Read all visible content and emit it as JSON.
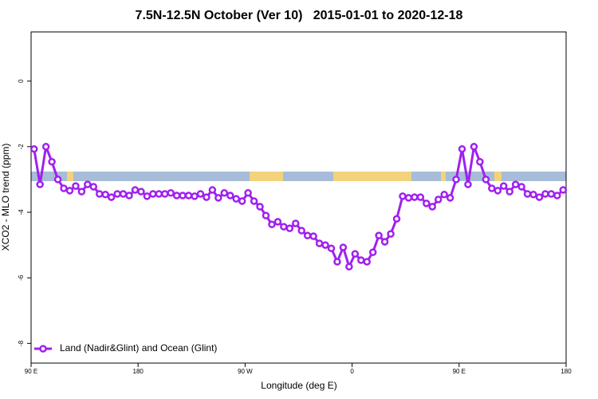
{
  "chart_data": {
    "type": "line",
    "title": "7.5N-12.5N October (Ver 10)   2015-01-01 to 2020-12-18",
    "x_label": "Longitude (deg E)",
    "y_label": "XCO2 - MLO trend (ppm)",
    "xlim": [
      90,
      540
    ],
    "xticks": [
      {
        "value": 90,
        "label": "90 E"
      },
      180,
      {
        "value": 270,
        "label": "90 W"
      },
      {
        "value": 360,
        "label": "0"
      },
      {
        "value": 450,
        "label": "90 E"
      },
      {
        "value": 540,
        "label": "180"
      }
    ],
    "ylim": [
      -8.6,
      1.5
    ],
    "yticks": [
      0,
      -2,
      -4,
      -6,
      -8
    ],
    "grid": false,
    "legend": "bottom-left",
    "x": [
      92.5,
      97.5,
      102.5,
      107.5,
      112.5,
      117.5,
      122.5,
      127.5,
      132.5,
      137.5,
      142.5,
      147.5,
      152.5,
      157.5,
      162.5,
      167.5,
      172.5,
      177.5,
      182.5,
      187.5,
      192.5,
      197.5,
      202.5,
      207.5,
      212.5,
      217.5,
      222.5,
      227.5,
      232.5,
      237.5,
      242.5,
      247.5,
      252.5,
      257.5,
      262.5,
      267.5,
      272.5,
      277.5,
      282.5,
      287.5,
      292.5,
      297.5,
      302.5,
      307.5,
      312.5,
      317.5,
      322.5,
      327.5,
      332.5,
      337.5,
      342.5,
      347.5,
      352.5,
      357.5,
      362.5,
      367.5,
      372.5,
      377.5,
      382.5,
      387.5,
      392.5,
      397.5,
      402.5,
      407.5,
      412.5,
      417.5,
      422.5,
      427.5,
      432.5,
      437.5,
      442.5,
      447.5,
      452.5,
      457.5,
      462.5,
      467.5,
      472.5,
      477.5,
      482.5,
      487.5,
      492.5,
      497.5,
      502.5,
      507.5,
      512.5,
      517.5,
      522.5,
      527.5,
      532.5,
      537.5
    ],
    "series": [
      {
        "name": "Land (Nadir&Glint) and Ocean (Glint)",
        "color": "#a020f0",
        "values": [
          -2.07,
          -3.15,
          -2.0,
          -2.46,
          -3.0,
          -3.27,
          -3.34,
          -3.2,
          -3.37,
          -3.15,
          -3.22,
          -3.44,
          -3.46,
          -3.54,
          -3.44,
          -3.44,
          -3.49,
          -3.32,
          -3.37,
          -3.51,
          -3.44,
          -3.44,
          -3.44,
          -3.41,
          -3.49,
          -3.49,
          -3.49,
          -3.51,
          -3.44,
          -3.54,
          -3.32,
          -3.56,
          -3.41,
          -3.49,
          -3.59,
          -3.66,
          -3.41,
          -3.66,
          -3.83,
          -4.1,
          -4.37,
          -4.29,
          -4.44,
          -4.49,
          -4.34,
          -4.56,
          -4.71,
          -4.73,
          -4.95,
          -5.0,
          -5.1,
          -5.51,
          -5.07,
          -5.66,
          -5.27,
          -5.46,
          -5.51,
          -5.22,
          -4.71,
          -4.9,
          -4.66,
          -4.2,
          -3.51,
          -3.56,
          -3.54,
          -3.54,
          -3.73,
          -3.83,
          -3.61,
          -3.46,
          -3.56,
          -3.0,
          -2.07,
          -3.15,
          -2.0,
          -2.46,
          -3.0,
          -3.27,
          -3.34,
          -3.2,
          -3.37,
          -3.15,
          -3.22,
          -3.44,
          -3.46,
          -3.54,
          -3.44,
          -3.44,
          -3.49,
          -3.32
        ]
      }
    ]
  }
}
